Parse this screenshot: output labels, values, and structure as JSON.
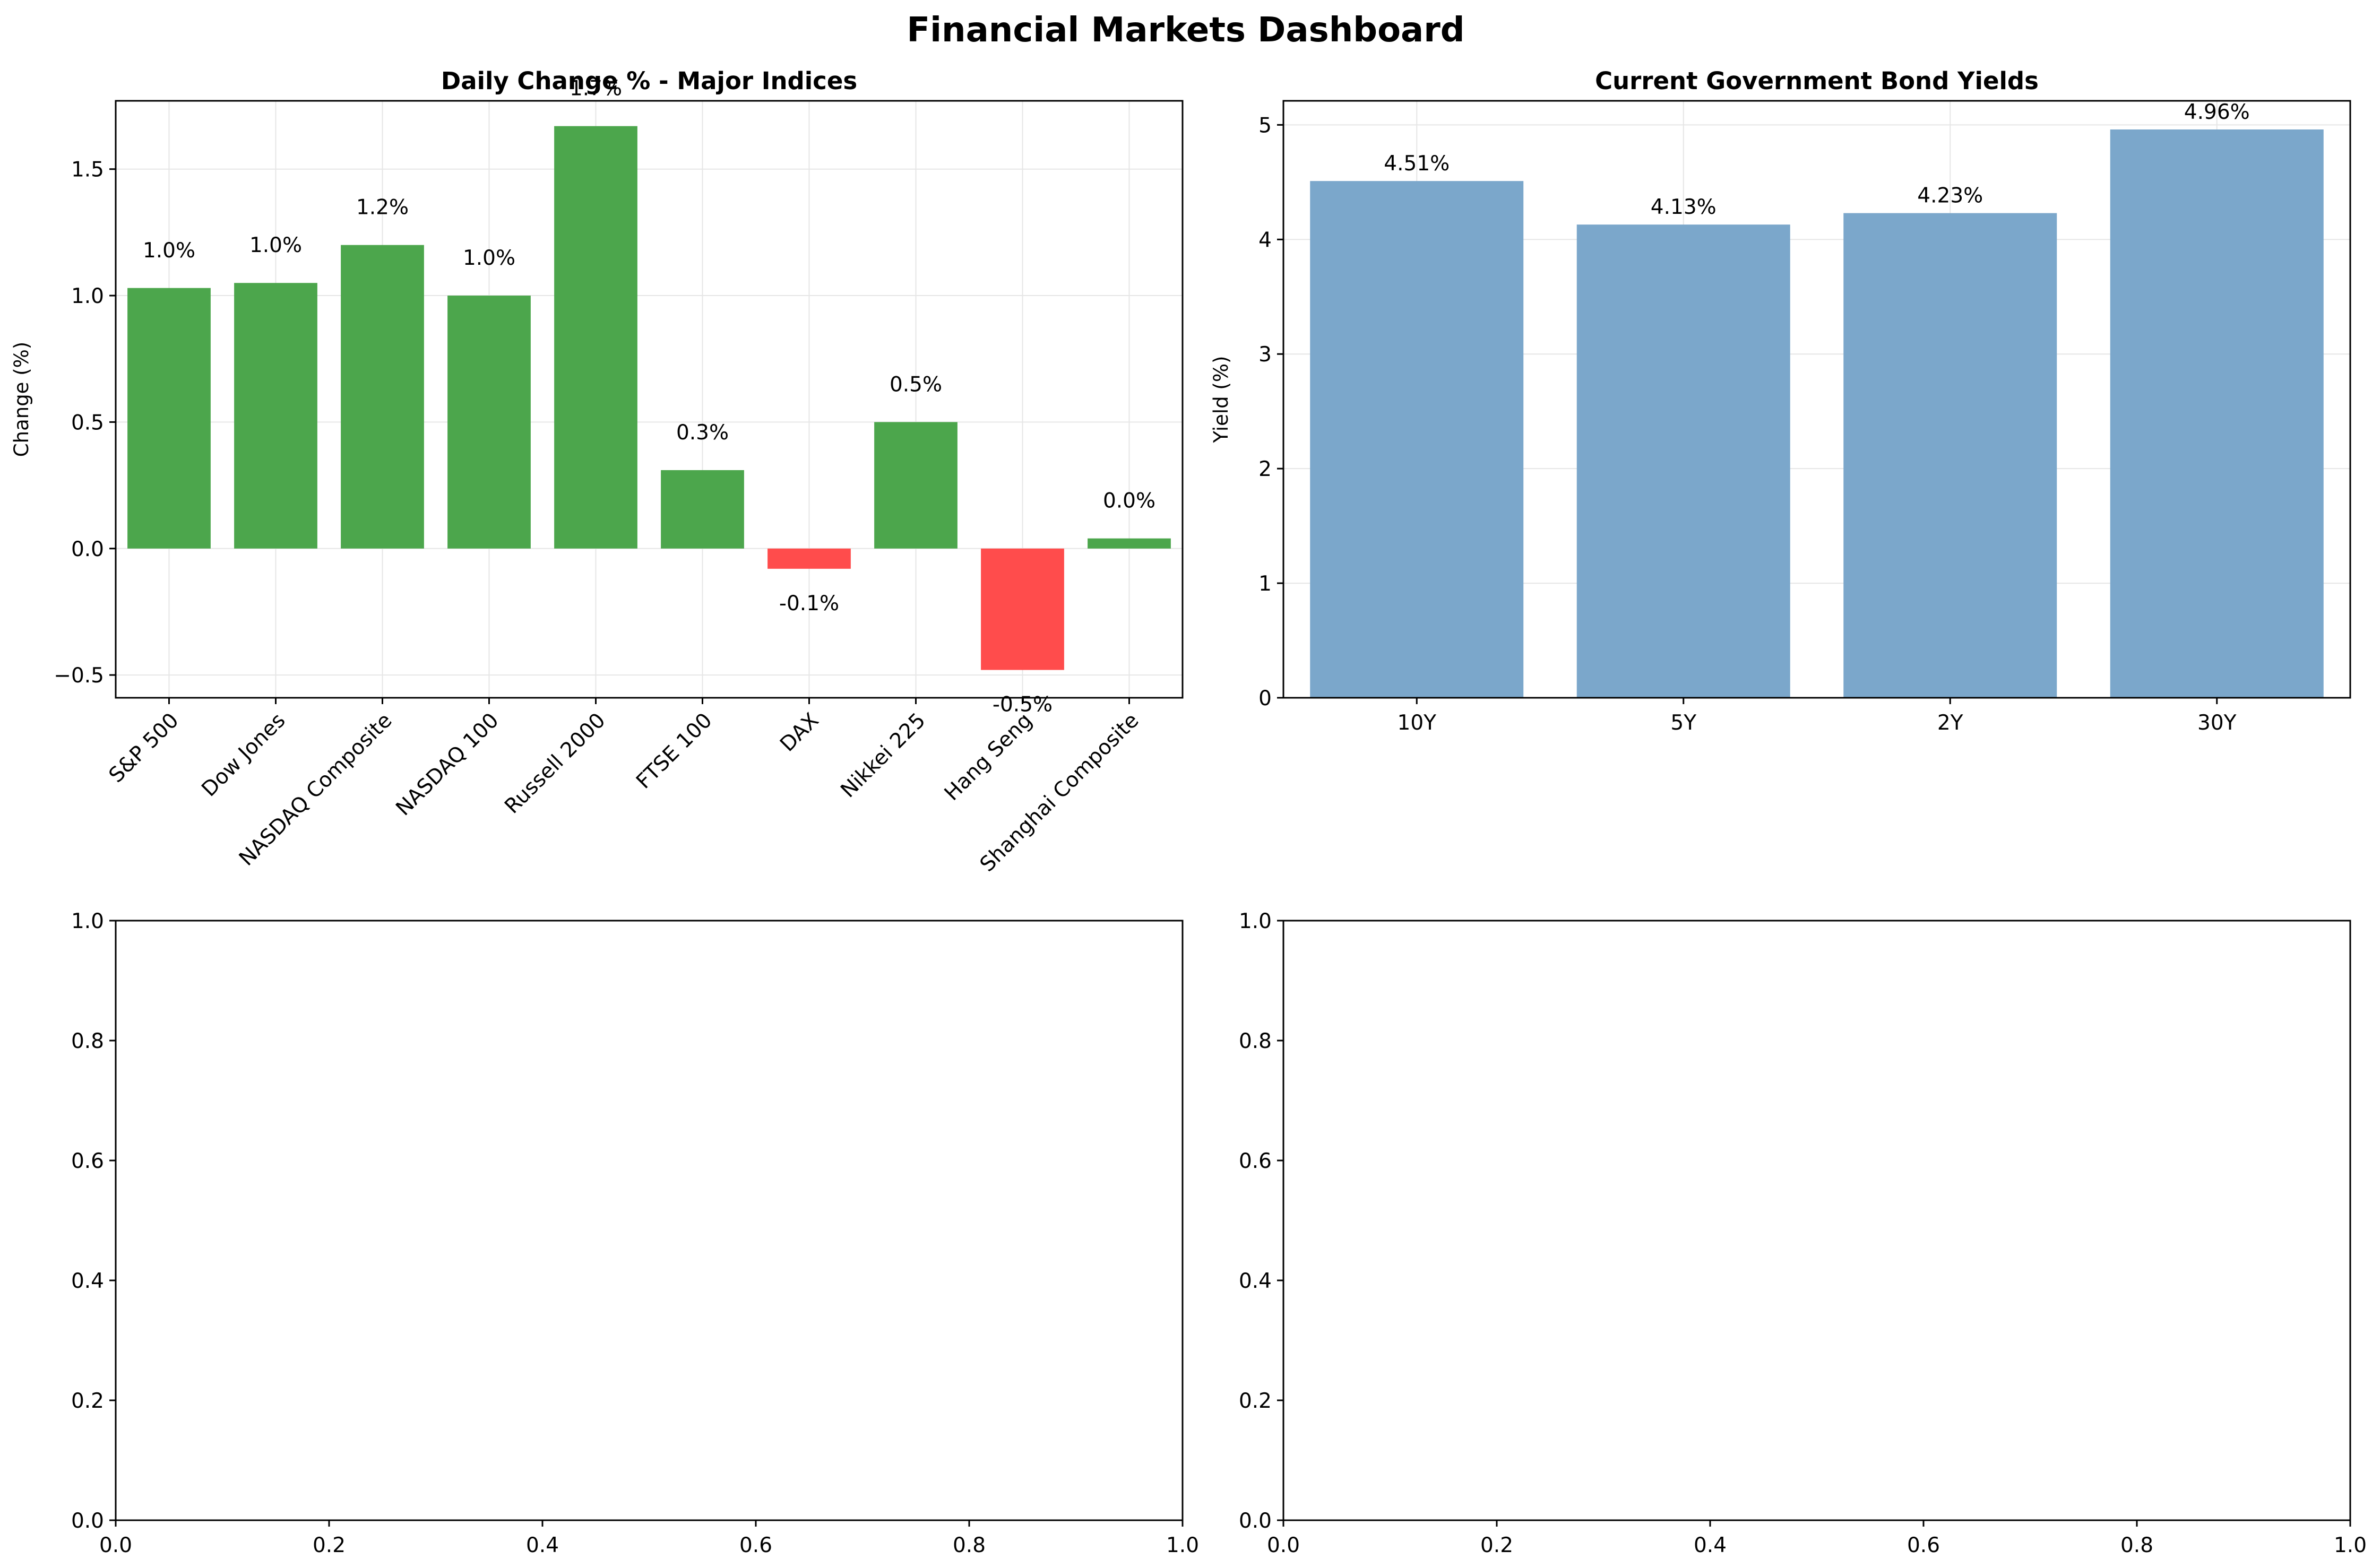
{
  "suptitle": "Financial Markets Dashboard",
  "colors": {
    "up": "#4ca64c",
    "down": "#ff4c4c",
    "yield": "#7ba7cb",
    "grid": "#e6e6e6",
    "axis": "#000000"
  },
  "chart_data": [
    {
      "type": "bar",
      "title": "Daily Change % - Major Indices",
      "xlabel": "",
      "ylabel": "Change (%)",
      "categories": [
        "S&P 500",
        "Dow Jones",
        "NASDAQ Composite",
        "NASDAQ 100",
        "Russell 2000",
        "FTSE 100",
        "DAX",
        "Nikkei 225",
        "Hang Seng",
        "Shanghai Composite"
      ],
      "values": [
        1.03,
        1.05,
        1.2,
        1.0,
        1.67,
        0.31,
        -0.08,
        0.5,
        -0.48,
        0.04
      ],
      "data_labels": [
        "1.0%",
        "1.0%",
        "1.2%",
        "1.0%",
        "1.7%",
        "0.3%",
        "-0.1%",
        "0.5%",
        "-0.5%",
        "0.0%"
      ],
      "ylim": [
        -0.59,
        1.77
      ],
      "yticks": [
        -0.5,
        0.0,
        0.5,
        1.0,
        1.5
      ],
      "ytick_labels": [
        "−0.5",
        "0.0",
        "0.5",
        "1.0",
        "1.5"
      ],
      "grid": true,
      "color_rule": "green if value >= 0 else red"
    },
    {
      "type": "bar",
      "title": "Current Government Bond Yields",
      "xlabel": "",
      "ylabel": "Yield (%)",
      "categories": [
        "10Y",
        "5Y",
        "2Y",
        "30Y"
      ],
      "values": [
        4.51,
        4.13,
        4.23,
        4.96
      ],
      "data_labels": [
        "4.51%",
        "4.13%",
        "4.23%",
        "4.96%"
      ],
      "ylim": [
        0,
        5.21
      ],
      "yticks": [
        0,
        1,
        2,
        3,
        4,
        5
      ],
      "ytick_labels": [
        "0",
        "1",
        "2",
        "3",
        "4",
        "5"
      ],
      "grid": true
    },
    {
      "type": "bar",
      "title": "",
      "categories": [],
      "values": [],
      "xlim": [
        0,
        1
      ],
      "ylim": [
        0,
        1
      ],
      "xticks": [
        0,
        0.2,
        0.4,
        0.6,
        0.8,
        1.0
      ],
      "xtick_labels": [
        "0.0",
        "0.2",
        "0.4",
        "0.6",
        "0.8",
        "1.0"
      ],
      "yticks": [
        0,
        0.2,
        0.4,
        0.6,
        0.8,
        1.0
      ],
      "ytick_labels": [
        "0.0",
        "0.2",
        "0.4",
        "0.6",
        "0.8",
        "1.0"
      ],
      "grid": false
    },
    {
      "type": "bar",
      "title": "",
      "categories": [],
      "values": [],
      "xlim": [
        0,
        1
      ],
      "ylim": [
        0,
        1
      ],
      "xticks": [
        0,
        0.2,
        0.4,
        0.6,
        0.8,
        1.0
      ],
      "xtick_labels": [
        "0.0",
        "0.2",
        "0.4",
        "0.6",
        "0.8",
        "1.0"
      ],
      "yticks": [
        0,
        0.2,
        0.4,
        0.6,
        0.8,
        1.0
      ],
      "ytick_labels": [
        "0.0",
        "0.2",
        "0.4",
        "0.6",
        "0.8",
        "1.0"
      ],
      "grid": false
    }
  ]
}
